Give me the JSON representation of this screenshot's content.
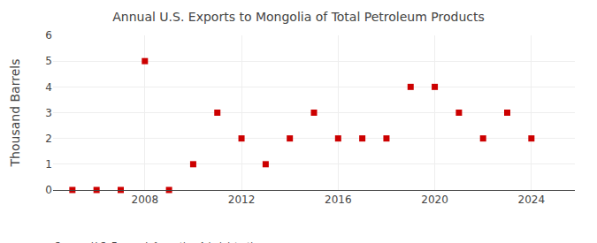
{
  "chart_data": {
    "type": "scatter",
    "title": "Annual U.S. Exports to Mongolia of Total Petroleum Products",
    "ylabel": "Thousand Barrels",
    "source": "Source: U.S. Energy Information Administration",
    "x": [
      2005,
      2006,
      2007,
      2008,
      2009,
      2010,
      2011,
      2012,
      2013,
      2014,
      2015,
      2016,
      2017,
      2018,
      2019,
      2020,
      2021,
      2022,
      2023,
      2024
    ],
    "values": [
      0,
      0,
      0,
      5,
      0,
      1,
      3,
      2,
      1,
      2,
      3,
      2,
      2,
      2,
      4,
      4,
      3,
      2,
      3,
      2
    ],
    "color": "#cc0000",
    "marker": "square",
    "xlim": [
      2004.2,
      2025.8
    ],
    "xticks": [
      2008,
      2012,
      2016,
      2020,
      2024
    ],
    "ylim": [
      0,
      6
    ],
    "yticks": [
      0,
      1,
      2,
      3,
      4,
      5,
      6
    ],
    "grid": true
  }
}
